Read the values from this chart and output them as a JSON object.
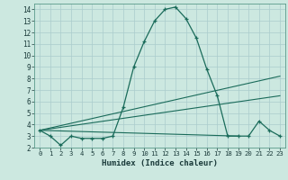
{
  "title": "",
  "xlabel": "Humidex (Indice chaleur)",
  "bg_color": "#cce8e0",
  "grid_color": "#aacccc",
  "line_color": "#1a6b5a",
  "xlim": [
    -0.5,
    23.5
  ],
  "ylim": [
    2,
    14.5
  ],
  "yticks": [
    2,
    3,
    4,
    5,
    6,
    7,
    8,
    9,
    10,
    11,
    12,
    13,
    14
  ],
  "xticks": [
    0,
    1,
    2,
    3,
    4,
    5,
    6,
    7,
    8,
    9,
    10,
    11,
    12,
    13,
    14,
    15,
    16,
    17,
    18,
    19,
    20,
    21,
    22,
    23
  ],
  "main_curve_x": [
    0,
    1,
    2,
    3,
    4,
    5,
    6,
    7,
    8,
    9,
    10,
    11,
    12,
    13,
    14,
    15,
    16,
    17,
    18,
    19,
    20,
    21,
    22,
    23
  ],
  "main_curve_y": [
    3.5,
    3.0,
    2.2,
    3.0,
    2.8,
    2.8,
    2.8,
    3.0,
    5.5,
    9.0,
    11.2,
    13.0,
    14.0,
    14.2,
    13.2,
    11.5,
    8.8,
    6.5,
    3.0,
    3.0,
    3.0,
    4.3,
    3.5,
    3.0
  ],
  "line1_x": [
    0,
    19
  ],
  "line1_y": [
    3.5,
    3.0
  ],
  "line2_x": [
    0,
    23
  ],
  "line2_y": [
    3.5,
    6.5
  ],
  "line3_x": [
    0,
    23
  ],
  "line3_y": [
    3.5,
    8.2
  ]
}
